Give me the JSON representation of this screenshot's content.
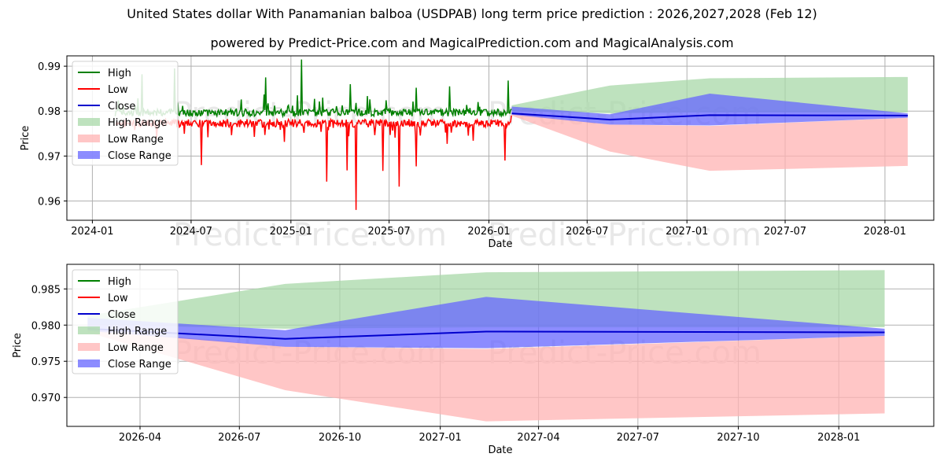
{
  "title": "United States dollar With Panamanian balboa (USDPAB) long term price prediction : 2026,2027,2028 (Feb 12)",
  "subtitle": "powered by Predict-Price.com and MagicalPrediction.com and MagicalAnalysis.com",
  "watermark": "Predict-Price.com",
  "colors": {
    "high": "#008000",
    "low": "#ff0000",
    "close": "#0000cd",
    "high_range": "#a8d8a8",
    "low_range": "#ffb3b3",
    "close_range": "#6666ff"
  },
  "legend": [
    "High",
    "Low",
    "Close",
    "High Range",
    "Low Range",
    "Close Range"
  ],
  "chart_data": [
    {
      "type": "line",
      "panel": "top",
      "xlabel": "Date",
      "ylabel": "Price",
      "xlim": [
        "2023-11-15",
        "2028-03-31"
      ],
      "ylim": [
        0.9557,
        0.9923
      ],
      "x_ticks": [
        "2024-01",
        "2024-07",
        "2025-01",
        "2025-07",
        "2026-01",
        "2026-07",
        "2027-01",
        "2027-07",
        "2028-01"
      ],
      "y_ticks": [
        0.96,
        0.97,
        0.98,
        0.99
      ],
      "history": {
        "start": "2024-02-12",
        "end": "2026-02-12",
        "high_baseline": 0.9795,
        "low_baseline": 0.9775,
        "high_spikes": [
          [
            "2024-04-01",
            0.9882
          ],
          [
            "2024-06-01",
            0.9895
          ],
          [
            "2025-01-20",
            0.9915
          ],
          [
            "2024-11-15",
            0.9875
          ],
          [
            "2025-04-20",
            0.986
          ],
          [
            "2025-08-20",
            0.9852
          ],
          [
            "2025-10-20",
            0.9855
          ],
          [
            "2026-02-05",
            0.9868
          ]
        ],
        "low_spikes": [
          [
            "2024-07-20",
            0.968
          ],
          [
            "2025-03-08",
            0.9643
          ],
          [
            "2025-04-15",
            0.9668
          ],
          [
            "2025-05-01",
            0.958
          ],
          [
            "2025-06-20",
            0.9667
          ],
          [
            "2025-07-20",
            0.9632
          ],
          [
            "2025-08-20",
            0.9677
          ],
          [
            "2026-01-30",
            0.969
          ]
        ]
      },
      "forecast": {
        "dates": [
          "2026-02-12",
          "2026-08-12",
          "2027-02-12",
          "2028-02-12"
        ],
        "high_range_upper": [
          0.9813,
          0.9857,
          0.9873,
          0.9876
        ],
        "high_range_lower": [
          0.98,
          0.9795,
          0.9797,
          0.9797
        ],
        "low_range_upper": [
          0.9795,
          0.977,
          0.9767,
          0.9785
        ],
        "low_range_lower": [
          0.979,
          0.971,
          0.9667,
          0.9678
        ],
        "close_range_upper": [
          0.981,
          0.9793,
          0.9839,
          0.9795
        ],
        "close_range_lower": [
          0.9792,
          0.977,
          0.9768,
          0.9785
        ],
        "close": [
          0.9795,
          0.9781,
          0.9791,
          0.979
        ]
      }
    },
    {
      "type": "area",
      "panel": "bottom",
      "xlabel": "Date",
      "ylabel": "Price",
      "xlim": [
        "2026-01-24",
        "2028-03-28"
      ],
      "ylim": [
        0.966,
        0.9884
      ],
      "x_ticks": [
        "2026-04",
        "2026-07",
        "2026-10",
        "2027-01",
        "2027-04",
        "2027-07",
        "2027-10",
        "2028-01"
      ],
      "y_ticks": [
        0.97,
        0.975,
        0.98,
        0.985
      ]
    }
  ]
}
